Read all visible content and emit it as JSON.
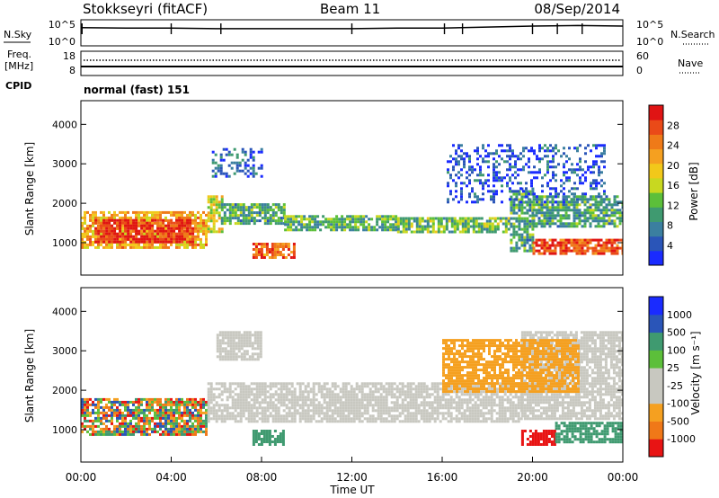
{
  "header": {
    "station": "Stokkseyri (fitACF)",
    "beam": "Beam 11",
    "date": "08/Sep/2014"
  },
  "left_labels": {
    "nsky": "N.Sky",
    "freq": "Freq.",
    "freq_unit": "[MHz]",
    "cpid": "CPID"
  },
  "right_labels": {
    "nsearch": "N.Search",
    "nave": "Nave"
  },
  "cpid_text": "normal (fast) 151",
  "colors": {
    "power": [
      "#1a2bff",
      "#2a55b8",
      "#3b7fa0",
      "#3f9a70",
      "#5cbf3a",
      "#c8d820",
      "#f2c81a",
      "#f5a020",
      "#ef7a18",
      "#ea4a18",
      "#e01414"
    ],
    "velocity": [
      "#e81414",
      "#f07818",
      "#f5a020",
      "#c8c8c0",
      "#c8c8c0",
      "#5cbf3a",
      "#3f9a70",
      "#2a55b8",
      "#1a2bff"
    ],
    "ground_scatter": "#c8c8c0"
  },
  "chart_data": [
    {
      "type": "line",
      "panel": "noise",
      "left_axis": {
        "label": "N.Sky",
        "ticks": [
          "10^5",
          "10^0"
        ]
      },
      "right_axis": {
        "label": "N.Search",
        "ticks": [
          "10^5",
          "10^0"
        ]
      },
      "series": [
        {
          "name": "N.Sky",
          "x_hours": [
            0,
            2,
            4,
            6,
            8,
            10,
            12,
            14,
            16,
            18,
            20,
            22,
            24
          ],
          "log10_value": [
            3.5,
            3.4,
            3.4,
            3.3,
            3.3,
            3.3,
            3.3,
            3.4,
            3.4,
            3.6,
            3.8,
            3.9,
            3.8
          ]
        }
      ]
    },
    {
      "type": "line",
      "panel": "frequency",
      "left_axis": {
        "label": "Freq. [MHz]",
        "ticks": [
          "18",
          "8"
        ]
      },
      "right_axis": {
        "label": "Nave",
        "ticks": [
          "60",
          "0"
        ]
      },
      "series": [
        {
          "name": "Nave",
          "x_hours": [
            0,
            24
          ],
          "values": [
            45,
            45
          ]
        },
        {
          "name": "Freq.",
          "x_hours": [
            0,
            24
          ],
          "values": [
            10.5,
            10.5
          ]
        }
      ]
    },
    {
      "type": "heatmap",
      "panel": "power",
      "ylabel": "Slant Range [km]",
      "yticks": [
        "1000",
        "2000",
        "3000",
        "4000"
      ],
      "ylim": [
        180,
        4600
      ],
      "xlim": [
        0,
        24
      ],
      "colorbar": {
        "label": "Power [dB]",
        "ticks": [
          "4",
          "8",
          "12",
          "16",
          "20",
          "24",
          "28"
        ],
        "range": [
          0,
          30
        ]
      },
      "regions": [
        {
          "x": [
            0.0,
            5.6
          ],
          "y": [
            900,
            1800
          ],
          "value": 20
        },
        {
          "x": [
            0.6,
            5.0
          ],
          "y": [
            1000,
            1600
          ],
          "value": 28
        },
        {
          "x": [
            5.6,
            6.2
          ],
          "y": [
            1300,
            2200
          ],
          "value": 16
        },
        {
          "x": [
            6.2,
            9.0
          ],
          "y": [
            1500,
            2000
          ],
          "value": 10
        },
        {
          "x": [
            9.0,
            14.0
          ],
          "y": [
            1300,
            1700
          ],
          "value": 11
        },
        {
          "x": [
            14.0,
            19.0
          ],
          "y": [
            1250,
            1650
          ],
          "value": 12
        },
        {
          "x": [
            7.6,
            9.4
          ],
          "y": [
            600,
            1000
          ],
          "value": 24
        },
        {
          "x": [
            19.0,
            20.0
          ],
          "y": [
            800,
            2400
          ],
          "value": 10
        },
        {
          "x": [
            20.0,
            24.0
          ],
          "y": [
            700,
            1100
          ],
          "value": 26
        },
        {
          "x": [
            20.0,
            24.0
          ],
          "y": [
            1400,
            2200
          ],
          "value": 10
        },
        {
          "x": [
            5.8,
            8.0
          ],
          "y": [
            2700,
            3400
          ],
          "value": 6
        },
        {
          "x": [
            16.2,
            23.2
          ],
          "y": [
            2000,
            3500
          ],
          "value": 4
        }
      ]
    },
    {
      "type": "heatmap",
      "panel": "velocity",
      "ylabel": "Slant Range [km]",
      "xlabel": "Time UT",
      "xticks": [
        "00:00",
        "04:00",
        "08:00",
        "12:00",
        "16:00",
        "20:00",
        "00:00"
      ],
      "yticks": [
        "1000",
        "2000",
        "3000",
        "4000"
      ],
      "ylim": [
        180,
        4600
      ],
      "xlim": [
        0,
        24
      ],
      "colorbar": {
        "label": "Velocity [m s⁻¹]",
        "ticks": [
          "1000",
          "500",
          "100",
          "25",
          "-25",
          "-100",
          "-500",
          "-1000"
        ]
      },
      "regions": [
        {
          "x": [
            0.0,
            5.6
          ],
          "y": [
            900,
            1800
          ],
          "value": -300,
          "mixed": true
        },
        {
          "x": [
            5.6,
            19.5
          ],
          "y": [
            1200,
            2200
          ],
          "value": 0,
          "ground_scatter": true
        },
        {
          "x": [
            6.0,
            8.0
          ],
          "y": [
            2800,
            3500
          ],
          "value": 0,
          "ground_scatter": true
        },
        {
          "x": [
            19.5,
            24.0
          ],
          "y": [
            1300,
            3500
          ],
          "value": 0,
          "ground_scatter": true
        },
        {
          "x": [
            7.6,
            9.0
          ],
          "y": [
            600,
            1000
          ],
          "value": 300
        },
        {
          "x": [
            19.5,
            21.0
          ],
          "y": [
            600,
            1000
          ],
          "value": -600
        },
        {
          "x": [
            21.0,
            24.0
          ],
          "y": [
            700,
            1200
          ],
          "value": 200
        },
        {
          "x": [
            16.0,
            22.0
          ],
          "y": [
            2000,
            3300
          ],
          "value": -80
        }
      ]
    }
  ]
}
